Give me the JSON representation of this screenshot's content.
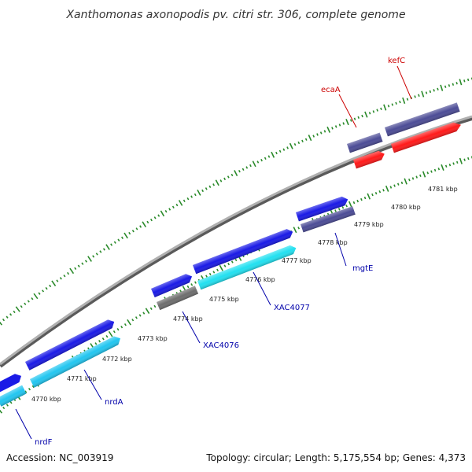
{
  "title": "Xanthomonas axonopodis pv. citri str. 306, complete genome",
  "accession": "Accession: NC_003919",
  "summary": "Topology: circular; Length: 5,175,554 bp; Genes: 4,373",
  "kbp_labels": [
    "4770 kbp",
    "4771 kbp",
    "4772 kbp",
    "4773 kbp",
    "4774 kbp",
    "4775 kbp",
    "4776 kbp",
    "4777 kbp",
    "4778 kbp",
    "4779 kbp",
    "4780 kbp",
    "4781 kbp"
  ],
  "gene_labels": [
    {
      "name": "kefC",
      "color": "#cc0000"
    },
    {
      "name": "ecaA",
      "color": "#cc0000"
    },
    {
      "name": "mgtE",
      "color": "#0000aa"
    },
    {
      "name": "XAC4077",
      "color": "#0000aa"
    },
    {
      "name": "XAC4076",
      "color": "#0000aa"
    },
    {
      "name": "nrdA",
      "color": "#0000aa"
    },
    {
      "name": "nrdF",
      "color": "#0000aa"
    }
  ],
  "colors": {
    "backbone": "#8c8c8c",
    "tick": "#2a8a2a",
    "blue_gene": "#1a1ae6",
    "cyan_gene": "#22e0f0",
    "sky_gene": "#22c6f0",
    "purple_gene": "#4c4c96",
    "red_gene": "#ff1a1a",
    "gray_gene": "#6e6e6e"
  }
}
